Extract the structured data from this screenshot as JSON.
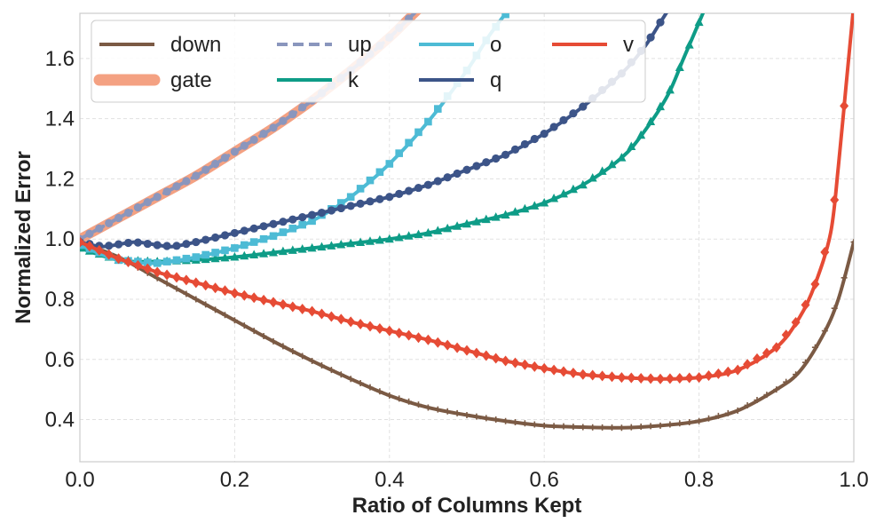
{
  "chart_data": {
    "type": "line",
    "title": "",
    "xlabel": "Ratio of Columns Kept",
    "ylabel": "Normalized Error",
    "xlim": [
      0.0,
      1.0
    ],
    "ylim": [
      0.26,
      1.75
    ],
    "xticks": [
      "0.0",
      "0.2",
      "0.4",
      "0.6",
      "0.8",
      "1.0"
    ],
    "yticks": [
      "0.4",
      "0.6",
      "0.8",
      "1.0",
      "1.2",
      "1.4",
      "1.6"
    ],
    "grid": true,
    "legend_position": "top-left",
    "series": [
      {
        "name": "down",
        "color": "#7b5a44",
        "marker": "plus",
        "dash": "solid",
        "x": [
          0,
          0.05,
          0.1,
          0.15,
          0.2,
          0.25,
          0.3,
          0.35,
          0.4,
          0.45,
          0.5,
          0.55,
          0.6,
          0.65,
          0.7,
          0.75,
          0.8,
          0.85,
          0.9,
          0.93,
          0.96,
          0.98,
          1.0
        ],
        "y": [
          0.99,
          0.94,
          0.87,
          0.8,
          0.73,
          0.66,
          0.595,
          0.535,
          0.48,
          0.44,
          0.415,
          0.395,
          0.38,
          0.375,
          0.373,
          0.38,
          0.395,
          0.43,
          0.5,
          0.56,
          0.68,
          0.8,
          0.99
        ]
      },
      {
        "name": "gate",
        "color": "#f4a182",
        "marker": "none",
        "dash": "solid",
        "wide": true,
        "x": [
          0,
          0.05,
          0.1,
          0.15,
          0.2,
          0.25,
          0.3,
          0.35,
          0.4,
          0.42,
          0.44
        ],
        "y": [
          1.0,
          1.07,
          1.14,
          1.21,
          1.29,
          1.37,
          1.46,
          1.56,
          1.67,
          1.72,
          1.77
        ]
      },
      {
        "name": "up",
        "color": "#8a96bd",
        "marker": "dot",
        "dash": "dashed",
        "x": [
          0,
          0.05,
          0.1,
          0.15,
          0.2,
          0.25,
          0.3,
          0.35,
          0.4,
          0.42,
          0.44
        ],
        "y": [
          1.0,
          1.07,
          1.14,
          1.21,
          1.29,
          1.37,
          1.46,
          1.56,
          1.67,
          1.72,
          1.77
        ]
      },
      {
        "name": "k",
        "color": "#0e9c87",
        "marker": "triangle",
        "dash": "solid",
        "x": [
          0,
          0.05,
          0.1,
          0.15,
          0.2,
          0.25,
          0.3,
          0.35,
          0.4,
          0.45,
          0.5,
          0.55,
          0.6,
          0.65,
          0.7,
          0.73,
          0.76,
          0.78,
          0.8,
          0.81
        ],
        "y": [
          0.97,
          0.93,
          0.925,
          0.93,
          0.94,
          0.955,
          0.97,
          0.985,
          1.0,
          1.02,
          1.05,
          1.08,
          1.12,
          1.18,
          1.27,
          1.36,
          1.48,
          1.6,
          1.72,
          1.78
        ]
      },
      {
        "name": "o",
        "color": "#4dbbd5",
        "marker": "square",
        "dash": "solid",
        "x": [
          0,
          0.05,
          0.1,
          0.15,
          0.2,
          0.25,
          0.3,
          0.35,
          0.4,
          0.45,
          0.5,
          0.53,
          0.56,
          0.57
        ],
        "y": [
          0.98,
          0.93,
          0.92,
          0.94,
          0.97,
          1.01,
          1.06,
          1.14,
          1.25,
          1.39,
          1.56,
          1.68,
          1.78,
          1.8
        ]
      },
      {
        "name": "q",
        "color": "#3c5488",
        "marker": "dot",
        "dash": "solid",
        "x": [
          0,
          0.03,
          0.07,
          0.1,
          0.12,
          0.15,
          0.2,
          0.25,
          0.3,
          0.35,
          0.4,
          0.45,
          0.5,
          0.55,
          0.6,
          0.65,
          0.7,
          0.73,
          0.75,
          0.76
        ],
        "y": [
          0.99,
          0.975,
          0.99,
          0.98,
          0.975,
          0.99,
          1.02,
          1.05,
          1.08,
          1.11,
          1.14,
          1.18,
          1.23,
          1.28,
          1.35,
          1.44,
          1.55,
          1.64,
          1.72,
          1.76
        ]
      },
      {
        "name": "v",
        "color": "#e64b35",
        "marker": "diamond",
        "dash": "solid",
        "x": [
          0,
          0.05,
          0.1,
          0.15,
          0.2,
          0.25,
          0.3,
          0.35,
          0.4,
          0.45,
          0.5,
          0.55,
          0.6,
          0.65,
          0.7,
          0.75,
          0.8,
          0.85,
          0.9,
          0.93,
          0.95,
          0.97,
          0.98,
          0.99,
          1.0
        ],
        "y": [
          0.99,
          0.935,
          0.89,
          0.855,
          0.82,
          0.79,
          0.76,
          0.725,
          0.695,
          0.665,
          0.63,
          0.595,
          0.57,
          0.55,
          0.54,
          0.535,
          0.54,
          0.565,
          0.64,
          0.74,
          0.85,
          1.02,
          1.24,
          1.51,
          1.78
        ]
      }
    ]
  }
}
